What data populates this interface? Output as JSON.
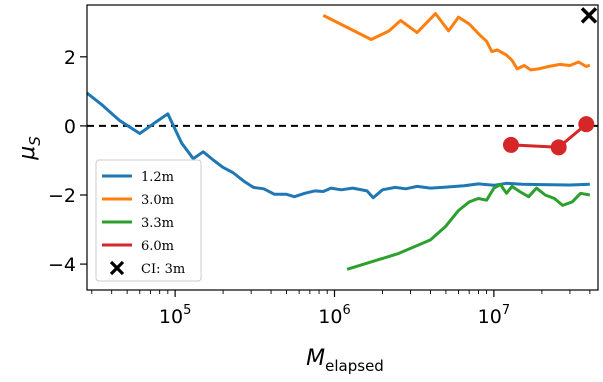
{
  "chart_data": {
    "type": "line",
    "title": "",
    "xlabel_main": "M",
    "xlabel_sub": "elapsed",
    "ylabel_main": "μ",
    "ylabel_sub": "S",
    "xscale": "log",
    "xlim": [
      28000,
      45000000
    ],
    "ylim": [
      -4.75,
      3.5
    ],
    "x_ticks": [
      {
        "value": 100000,
        "base": "10",
        "exp": "5"
      },
      {
        "value": 1000000,
        "base": "10",
        "exp": "6"
      },
      {
        "value": 10000000,
        "base": "10",
        "exp": "7"
      }
    ],
    "y_ticks": [
      {
        "value": 2,
        "label": "2"
      },
      {
        "value": 0,
        "label": "0"
      },
      {
        "value": -2,
        "label": "−2"
      },
      {
        "value": -4,
        "label": "−4"
      }
    ],
    "reference_line": {
      "y": 0,
      "style": "dashed",
      "color": "#000000"
    },
    "legend_position": "lower-left",
    "series": [
      {
        "name": "1.2m",
        "color": "#1f77b4",
        "marker": "none",
        "points": [
          [
            28000,
            0.95
          ],
          [
            35000,
            0.6
          ],
          [
            45000,
            0.15
          ],
          [
            60000,
            -0.22
          ],
          [
            75000,
            0.1
          ],
          [
            90000,
            0.35
          ],
          [
            110000,
            -0.5
          ],
          [
            130000,
            -0.95
          ],
          [
            150000,
            -0.75
          ],
          [
            175000,
            -1.0
          ],
          [
            200000,
            -1.2
          ],
          [
            230000,
            -1.35
          ],
          [
            270000,
            -1.6
          ],
          [
            310000,
            -1.78
          ],
          [
            360000,
            -1.82
          ],
          [
            420000,
            -1.98
          ],
          [
            500000,
            -1.98
          ],
          [
            560000,
            -2.05
          ],
          [
            650000,
            -1.95
          ],
          [
            750000,
            -1.88
          ],
          [
            850000,
            -1.9
          ],
          [
            950000,
            -1.8
          ],
          [
            1100000,
            -1.85
          ],
          [
            1300000,
            -1.8
          ],
          [
            1600000,
            -1.88
          ],
          [
            1750000,
            -2.08
          ],
          [
            2000000,
            -1.85
          ],
          [
            2400000,
            -1.78
          ],
          [
            2800000,
            -1.82
          ],
          [
            3300000,
            -1.75
          ],
          [
            4000000,
            -1.8
          ],
          [
            5000000,
            -1.77
          ],
          [
            6500000,
            -1.73
          ],
          [
            8000000,
            -1.68
          ],
          [
            10000000,
            -1.72
          ],
          [
            12000000,
            -1.66
          ],
          [
            15000000,
            -1.69
          ],
          [
            20000000,
            -1.7
          ],
          [
            30000000,
            -1.71
          ],
          [
            40000000,
            -1.69
          ]
        ]
      },
      {
        "name": "3.0m",
        "color": "#ff7f0e",
        "marker": "none",
        "points": [
          [
            850000,
            3.2
          ],
          [
            1700000,
            2.5
          ],
          [
            2200000,
            2.75
          ],
          [
            2600000,
            3.05
          ],
          [
            3300000,
            2.7
          ],
          [
            4300000,
            3.25
          ],
          [
            5200000,
            2.75
          ],
          [
            6000000,
            3.15
          ],
          [
            7000000,
            2.95
          ],
          [
            8200000,
            2.62
          ],
          [
            9000000,
            2.45
          ],
          [
            9700000,
            2.15
          ],
          [
            10500000,
            2.2
          ],
          [
            12000000,
            2.05
          ],
          [
            13000000,
            1.9
          ],
          [
            14000000,
            1.65
          ],
          [
            15500000,
            1.75
          ],
          [
            17000000,
            1.62
          ],
          [
            19000000,
            1.65
          ],
          [
            22000000,
            1.72
          ],
          [
            26000000,
            1.78
          ],
          [
            30000000,
            1.75
          ],
          [
            34000000,
            1.85
          ],
          [
            38000000,
            1.72
          ],
          [
            40000000,
            1.76
          ]
        ]
      },
      {
        "name": "3.3m",
        "color": "#2ca02c",
        "marker": "none",
        "points": [
          [
            1200000,
            -4.15
          ],
          [
            2500000,
            -3.7
          ],
          [
            4000000,
            -3.3
          ],
          [
            5000000,
            -2.9
          ],
          [
            6000000,
            -2.45
          ],
          [
            7000000,
            -2.2
          ],
          [
            8000000,
            -2.1
          ],
          [
            9000000,
            -2.15
          ],
          [
            10000000,
            -1.8
          ],
          [
            11000000,
            -1.7
          ],
          [
            12000000,
            -1.95
          ],
          [
            13000000,
            -1.75
          ],
          [
            14500000,
            -1.9
          ],
          [
            16500000,
            -2.05
          ],
          [
            18500000,
            -1.8
          ],
          [
            21000000,
            -2.0
          ],
          [
            24000000,
            -2.1
          ],
          [
            27000000,
            -2.3
          ],
          [
            31000000,
            -2.2
          ],
          [
            35000000,
            -1.95
          ],
          [
            40000000,
            -2.0
          ]
        ]
      },
      {
        "name": "6.0m",
        "color": "#d62728",
        "marker": "circle",
        "points": [
          [
            12800000,
            -0.55
          ],
          [
            25500000,
            -0.62
          ],
          [
            38000000,
            0.05
          ]
        ]
      },
      {
        "name": "CI: 3m",
        "color": "#000000",
        "marker": "x",
        "linestyle": "none",
        "points": [
          [
            39500000,
            3.2
          ]
        ]
      }
    ]
  }
}
